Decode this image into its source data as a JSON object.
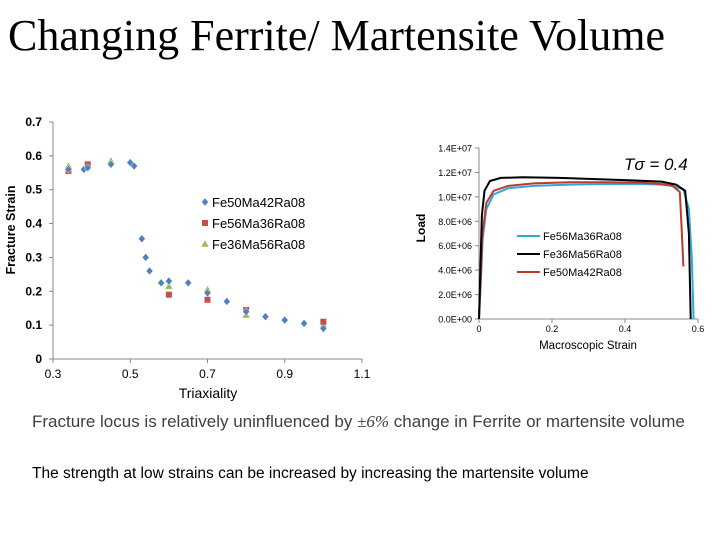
{
  "title": "Changing Ferrite/ Martensite Volume",
  "notes": {
    "line1_before": "Fracture locus is relatively uninfluenced by",
    "line1_symbol": "±6%",
    "line1_after": "change in Ferrite or martensite volume",
    "line2": "The strength at low strains can be increased by increasing the martensite volume"
  },
  "chart_data": [
    {
      "type": "scatter",
      "title": "",
      "xlabel": "Triaxiality",
      "ylabel": "Fracture Strain",
      "xlim": [
        0.3,
        1.1
      ],
      "ylim": [
        0,
        0.7
      ],
      "xticks": [
        "0.3",
        "0.5",
        "0.7",
        "0.9",
        "1.1"
      ],
      "yticks": [
        "0",
        "0.1",
        "0.2",
        "0.3",
        "0.4",
        "0.5",
        "0.6",
        "0.7"
      ],
      "legend_position": "center",
      "series": [
        {
          "name": "Fe50Ma42Ra08",
          "marker": "diamond",
          "color": "#4f81bd",
          "points": [
            [
              0.34,
              0.56
            ],
            [
              0.38,
              0.56
            ],
            [
              0.39,
              0.565
            ],
            [
              0.45,
              0.575
            ],
            [
              0.5,
              0.58
            ],
            [
              0.51,
              0.57
            ],
            [
              0.53,
              0.355
            ],
            [
              0.54,
              0.3
            ],
            [
              0.55,
              0.26
            ],
            [
              0.58,
              0.225
            ],
            [
              0.6,
              0.23
            ],
            [
              0.65,
              0.225
            ],
            [
              0.7,
              0.195
            ],
            [
              0.75,
              0.17
            ],
            [
              0.8,
              0.14
            ],
            [
              0.85,
              0.125
            ],
            [
              0.9,
              0.115
            ],
            [
              0.95,
              0.105
            ],
            [
              1.0,
              0.09
            ]
          ]
        },
        {
          "name": "Fe56Ma36Ra08",
          "marker": "square",
          "color": "#c0504d",
          "points": [
            [
              0.34,
              0.555
            ],
            [
              0.39,
              0.575
            ],
            [
              0.6,
              0.19
            ],
            [
              0.7,
              0.175
            ],
            [
              0.8,
              0.145
            ],
            [
              1.0,
              0.11
            ]
          ]
        },
        {
          "name": "Fe36Ma56Ra08",
          "marker": "triangle",
          "color": "#9bbb59",
          "points": [
            [
              0.34,
              0.57
            ],
            [
              0.39,
              0.57
            ],
            [
              0.45,
              0.585
            ],
            [
              0.6,
              0.215
            ],
            [
              0.7,
              0.205
            ],
            [
              0.8,
              0.13
            ],
            [
              1.0,
              0.1
            ]
          ]
        }
      ]
    },
    {
      "type": "line",
      "title": "",
      "xlabel": "Macroscopic Strain",
      "ylabel": "Load",
      "annotation": "Tσ = 0.4",
      "xlim": [
        0,
        0.6
      ],
      "ylim": [
        0,
        14000000
      ],
      "xticks": [
        "0",
        "0.2",
        "0.4",
        "0.6"
      ],
      "yticks": [
        "0.0E+00",
        "2.0E+06",
        "4.0E+06",
        "6.0E+06",
        "8.0E+06",
        "1.0E+07",
        "1.2E+07",
        "1.4E+07"
      ],
      "legend_position": "center-right",
      "series": [
        {
          "name": "Fe56Ma36Ra08",
          "color": "#2ea9df",
          "x": [
            0,
            0.005,
            0.01,
            0.02,
            0.04,
            0.08,
            0.15,
            0.25,
            0.35,
            0.45,
            0.5,
            0.53,
            0.56,
            0.575,
            0.583,
            0.588
          ],
          "y": [
            0,
            3000000,
            6500000,
            9000000,
            10200000,
            10700000,
            10900000,
            11000000,
            11050000,
            11050000,
            11000000,
            10900000,
            10600000,
            9000000,
            5000000,
            0
          ]
        },
        {
          "name": "Fe36Ma56Ra08",
          "color": "#000000",
          "x": [
            0,
            0.004,
            0.008,
            0.015,
            0.03,
            0.06,
            0.12,
            0.22,
            0.32,
            0.42,
            0.5,
            0.54,
            0.565,
            0.575,
            0.58
          ],
          "y": [
            0,
            4500000,
            8500000,
            10500000,
            11300000,
            11550000,
            11600000,
            11550000,
            11450000,
            11350000,
            11250000,
            11000000,
            10500000,
            7000000,
            0
          ]
        },
        {
          "name": "Fe50Ma42Ra08",
          "color": "#c0392b",
          "x": [
            0,
            0.005,
            0.01,
            0.02,
            0.04,
            0.08,
            0.15,
            0.25,
            0.35,
            0.45,
            0.5,
            0.53,
            0.55,
            0.555,
            0.56
          ],
          "y": [
            0,
            3500000,
            7000000,
            9500000,
            10500000,
            10900000,
            11100000,
            11200000,
            11200000,
            11150000,
            11050000,
            10900000,
            10400000,
            7500000,
            4300000
          ]
        }
      ]
    }
  ]
}
